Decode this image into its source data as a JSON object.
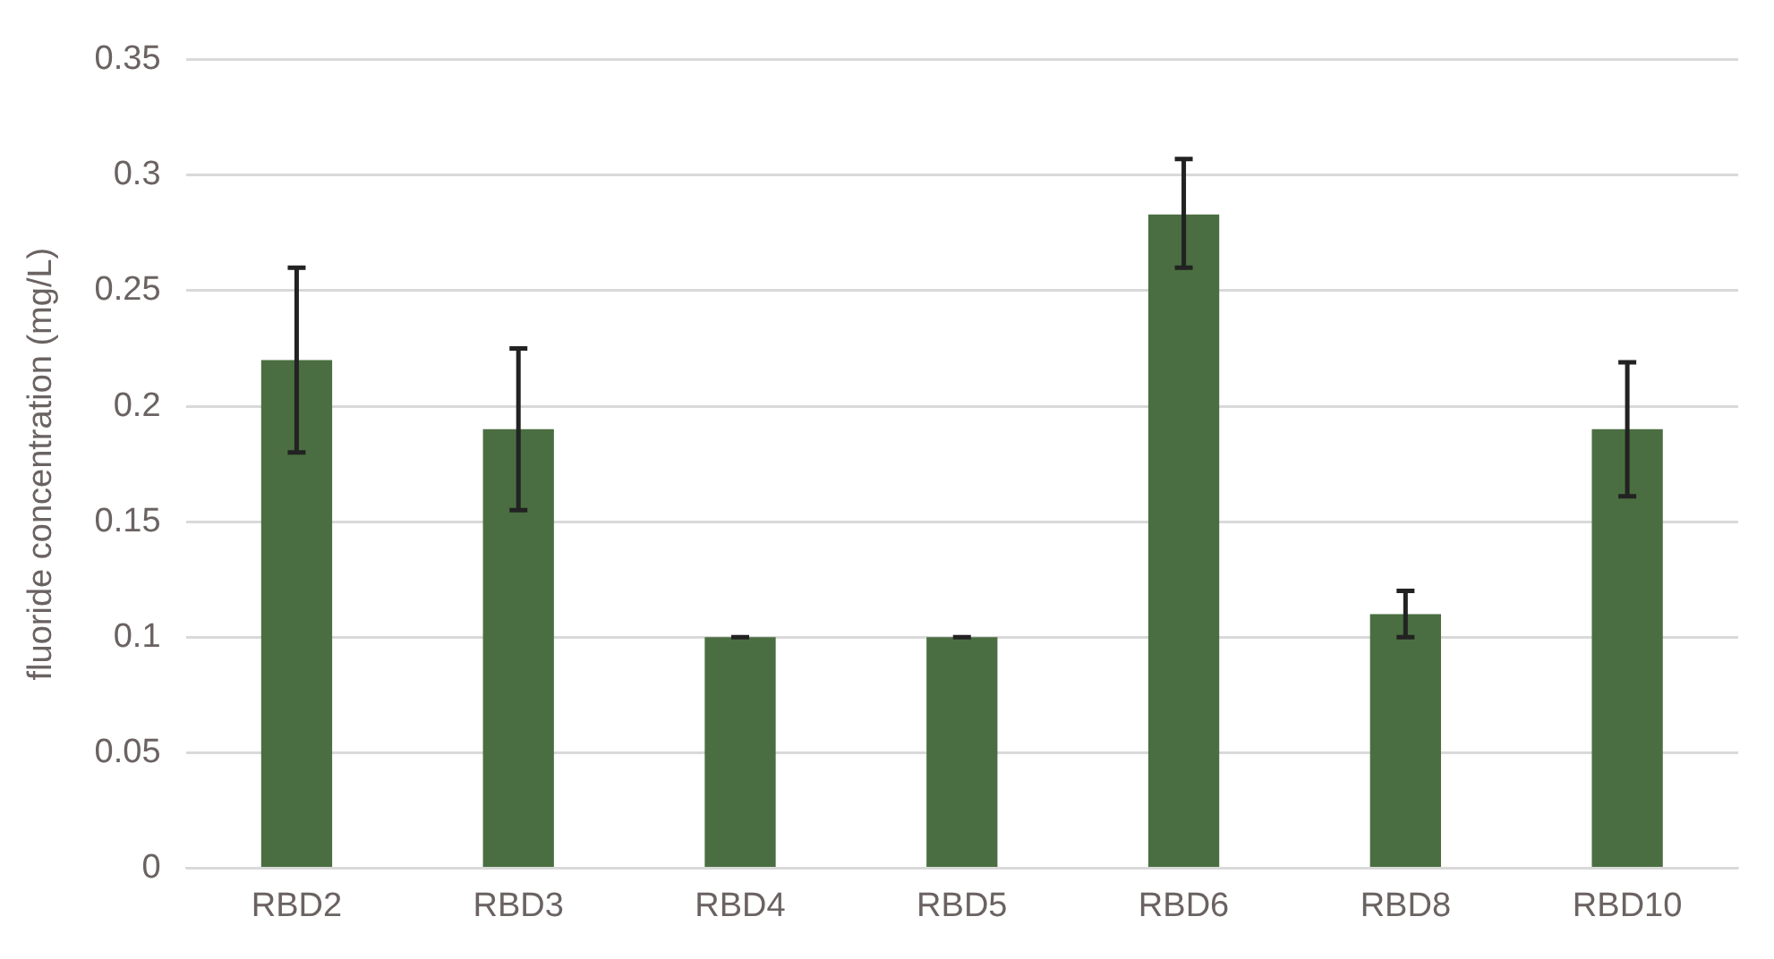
{
  "chart_data": {
    "type": "bar",
    "ylabel": "fluoride concentration (mg/L)",
    "categories": [
      "RBD2",
      "RBD3",
      "RBD4",
      "RBD5",
      "RBD6",
      "RBD8",
      "RBD10"
    ],
    "values": [
      0.22,
      0.19,
      0.1,
      0.1,
      0.283,
      0.11,
      0.19
    ],
    "errors": [
      0.04,
      0.035,
      0,
      0,
      [
        0.26,
        0.307
      ],
      0.01,
      [
        0.161,
        0.219
      ]
    ],
    "color": "#4a6e41",
    "ylim": [
      0,
      0.35
    ],
    "yticks": [
      0,
      0.05,
      0.1,
      0.15,
      0.2,
      0.25,
      0.3,
      0.35
    ],
    "grid": "y",
    "legend": false
  }
}
